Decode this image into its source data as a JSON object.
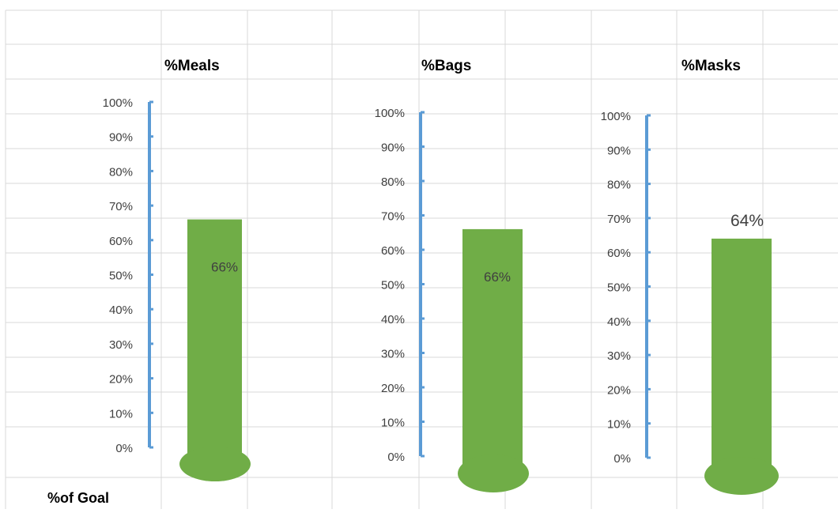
{
  "sheet": {
    "footer_label": "%of Goal",
    "grid_color": "#d9d9d9"
  },
  "colors": {
    "axis": "#5b9bd5",
    "bar": "#70ad47",
    "tick_text": "#404040"
  },
  "chart_data": [
    {
      "type": "bar",
      "title": "%Meals",
      "categories": [
        "%Meals"
      ],
      "values": [
        0.66
      ],
      "data_label": "66%",
      "ylim": [
        0,
        1
      ],
      "yticks": [
        "0%",
        "10%",
        "20%",
        "30%",
        "40%",
        "50%",
        "60%",
        "70%",
        "80%",
        "90%",
        "100%"
      ],
      "grid": false,
      "legend": "none"
    },
    {
      "type": "bar",
      "title": "%Bags",
      "categories": [
        "%Bags"
      ],
      "values": [
        0.66
      ],
      "data_label": "66%",
      "ylim": [
        0,
        1
      ],
      "yticks": [
        "0%",
        "10%",
        "20%",
        "30%",
        "40%",
        "50%",
        "60%",
        "70%",
        "80%",
        "90%",
        "100%"
      ],
      "grid": false,
      "legend": "none"
    },
    {
      "type": "bar",
      "title": "%Masks",
      "categories": [
        "%Masks"
      ],
      "values": [
        0.64
      ],
      "data_label": "64%",
      "ylim": [
        0,
        1
      ],
      "yticks": [
        "0%",
        "10%",
        "20%",
        "30%",
        "40%",
        "50%",
        "60%",
        "70%",
        "80%",
        "90%",
        "100%"
      ],
      "grid": false,
      "legend": "none"
    }
  ]
}
